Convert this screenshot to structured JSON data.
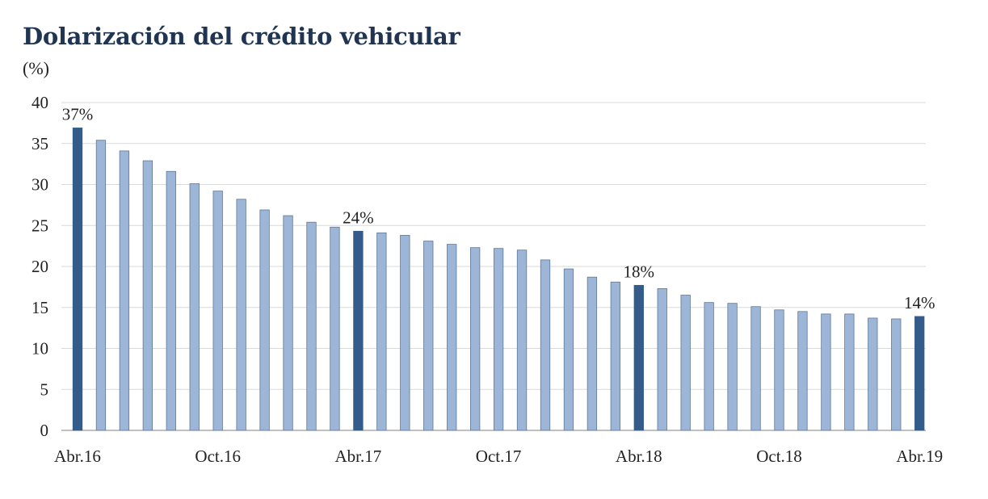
{
  "chart_data": {
    "type": "bar",
    "title": "Dolarización del crédito vehicular",
    "ylabel": "(%)",
    "xlabel": "",
    "ylim": [
      0,
      40
    ],
    "yticks": [
      0,
      5,
      10,
      15,
      20,
      25,
      30,
      35,
      40
    ],
    "grid": true,
    "x_tick_labels": [
      {
        "index": 0,
        "label": "Abr.16"
      },
      {
        "index": 6,
        "label": "Oct.16"
      },
      {
        "index": 12,
        "label": "Abr.17"
      },
      {
        "index": 18,
        "label": "Oct.17"
      },
      {
        "index": 24,
        "label": "Abr.18"
      },
      {
        "index": 30,
        "label": "Oct.18"
      },
      {
        "index": 36,
        "label": "Abr.19"
      }
    ],
    "values": [
      36.9,
      35.4,
      34.1,
      32.9,
      31.6,
      30.1,
      29.2,
      28.2,
      26.9,
      26.2,
      25.4,
      24.8,
      24.3,
      24.1,
      23.8,
      23.1,
      22.7,
      22.3,
      22.2,
      22.0,
      20.8,
      19.7,
      18.7,
      18.1,
      17.7,
      17.3,
      16.5,
      15.6,
      15.5,
      15.1,
      14.7,
      14.5,
      14.2,
      14.2,
      13.7,
      13.6,
      13.9
    ],
    "highlight_indices": [
      0,
      12,
      24,
      36
    ],
    "data_labels": [
      {
        "index": 0,
        "label": "37%"
      },
      {
        "index": 12,
        "label": "24%"
      },
      {
        "index": 24,
        "label": "18%"
      },
      {
        "index": 36,
        "label": "14%"
      }
    ],
    "colors": {
      "bar": "#9db5d6",
      "bar_highlight": "#345c8a",
      "bar_stroke": "#5f7898",
      "grid": "#d9d9d9",
      "title": "#1f3552"
    }
  }
}
